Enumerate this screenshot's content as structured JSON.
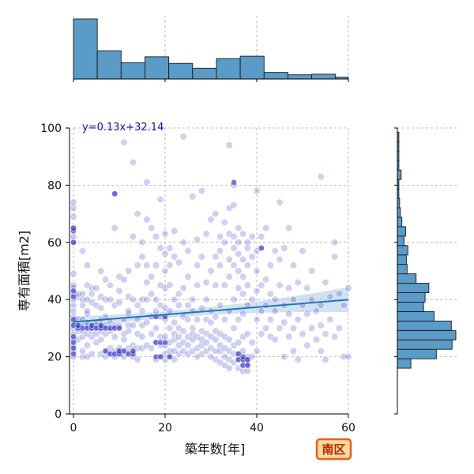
{
  "badge": {
    "label": "南区",
    "fill": "#ffd9a0",
    "border": "#e8611a"
  },
  "colors": {
    "hist_fill": "#5a9bc8",
    "hist_edge": "#1a1a1a",
    "point": "#2a2ac0",
    "fit_line": "#1f77b4",
    "ci_band": "#a9c9e6",
    "grid": "#aaaaaa"
  },
  "chart_data": {
    "type": "scatter",
    "title": "",
    "xlabel": "築年数[年]",
    "ylabel": "専有面積[m2]",
    "xlim": [
      -1,
      60
    ],
    "ylim": [
      0,
      100
    ],
    "xticks": [
      0,
      20,
      40,
      60
    ],
    "yticks": [
      0,
      20,
      40,
      60,
      80,
      100
    ],
    "grid": true,
    "fit": {
      "label": "y=0.13x+32.14",
      "slope": 0.13,
      "intercept": 32.14
    },
    "points": [
      [
        0,
        20
      ],
      [
        0,
        22
      ],
      [
        0,
        24
      ],
      [
        0,
        26
      ],
      [
        0,
        28
      ],
      [
        0,
        30
      ],
      [
        0,
        32
      ],
      [
        0,
        34
      ],
      [
        0,
        36
      ],
      [
        0,
        38
      ],
      [
        0,
        40
      ],
      [
        0,
        42
      ],
      [
        0,
        44
      ],
      [
        0,
        45
      ],
      [
        0,
        49
      ],
      [
        0,
        60
      ],
      [
        0,
        62
      ],
      [
        0,
        65
      ],
      [
        0,
        69
      ],
      [
        0,
        72
      ],
      [
        0,
        74
      ],
      [
        1,
        26
      ],
      [
        1,
        29
      ],
      [
        1,
        31
      ],
      [
        1,
        33
      ],
      [
        1,
        41
      ],
      [
        1,
        42
      ],
      [
        2,
        20
      ],
      [
        2,
        22
      ],
      [
        2,
        27
      ],
      [
        2,
        29
      ],
      [
        2,
        31
      ],
      [
        2,
        33
      ],
      [
        2,
        38
      ],
      [
        2,
        40
      ],
      [
        2,
        42
      ],
      [
        2,
        57
      ],
      [
        3,
        20
      ],
      [
        3,
        24
      ],
      [
        3,
        28
      ],
      [
        3,
        30
      ],
      [
        3,
        31
      ],
      [
        3,
        32
      ],
      [
        3,
        35
      ],
      [
        3,
        36
      ],
      [
        3,
        40
      ],
      [
        3,
        45
      ],
      [
        3,
        52
      ],
      [
        4,
        21
      ],
      [
        4,
        27
      ],
      [
        4,
        29
      ],
      [
        4,
        30
      ],
      [
        4,
        31
      ],
      [
        4,
        39
      ],
      [
        4,
        42
      ],
      [
        4,
        44
      ],
      [
        5,
        25
      ],
      [
        5,
        28
      ],
      [
        5,
        30
      ],
      [
        5,
        31
      ],
      [
        5,
        32
      ],
      [
        5,
        38
      ],
      [
        5,
        44
      ],
      [
        6,
        21
      ],
      [
        6,
        26
      ],
      [
        6,
        29
      ],
      [
        6,
        30
      ],
      [
        6,
        31
      ],
      [
        6,
        33
      ],
      [
        6,
        37
      ],
      [
        6,
        41
      ],
      [
        6,
        50
      ],
      [
        7,
        20
      ],
      [
        7,
        22
      ],
      [
        7,
        28
      ],
      [
        7,
        30
      ],
      [
        7,
        31
      ],
      [
        7,
        34
      ],
      [
        7,
        40
      ],
      [
        7,
        47
      ],
      [
        8,
        21
      ],
      [
        8,
        23
      ],
      [
        8,
        29
      ],
      [
        8,
        30
      ],
      [
        8,
        32
      ],
      [
        8,
        40
      ],
      [
        8,
        45
      ],
      [
        9,
        20
      ],
      [
        9,
        22
      ],
      [
        9,
        27
      ],
      [
        9,
        30
      ],
      [
        9,
        31
      ],
      [
        9,
        38
      ],
      [
        9,
        65
      ],
      [
        9,
        77
      ],
      [
        10,
        21
      ],
      [
        10,
        22
      ],
      [
        10,
        23
      ],
      [
        10,
        30
      ],
      [
        10,
        31
      ],
      [
        10,
        39
      ],
      [
        10,
        43
      ],
      [
        10,
        48
      ],
      [
        11,
        20
      ],
      [
        11,
        22
      ],
      [
        11,
        26
      ],
      [
        11,
        28
      ],
      [
        11,
        33
      ],
      [
        11,
        47
      ],
      [
        11,
        95
      ],
      [
        12,
        21
      ],
      [
        12,
        23
      ],
      [
        12,
        29
      ],
      [
        12,
        31
      ],
      [
        12,
        35
      ],
      [
        12,
        36
      ],
      [
        12,
        41
      ],
      [
        12,
        50
      ],
      [
        13,
        20
      ],
      [
        13,
        22
      ],
      [
        13,
        24
      ],
      [
        13,
        31
      ],
      [
        13,
        40
      ],
      [
        13,
        62
      ],
      [
        13,
        88
      ],
      [
        14,
        19
      ],
      [
        14,
        23
      ],
      [
        14,
        28
      ],
      [
        14,
        33
      ],
      [
        14,
        38
      ],
      [
        14,
        52
      ],
      [
        14,
        70
      ],
      [
        15,
        23
      ],
      [
        15,
        27
      ],
      [
        15,
        31
      ],
      [
        15,
        36
      ],
      [
        15,
        40
      ],
      [
        15,
        55
      ],
      [
        15,
        60
      ],
      [
        16,
        24
      ],
      [
        16,
        32
      ],
      [
        16,
        40
      ],
      [
        16,
        46
      ],
      [
        16,
        52
      ],
      [
        16,
        68
      ],
      [
        16,
        81
      ],
      [
        17,
        23
      ],
      [
        17,
        28
      ],
      [
        17,
        34
      ],
      [
        17,
        42
      ],
      [
        17,
        48
      ],
      [
        17,
        65
      ],
      [
        18,
        19
      ],
      [
        18,
        25
      ],
      [
        18,
        30
      ],
      [
        18,
        36
      ],
      [
        18,
        40
      ],
      [
        18,
        52
      ],
      [
        18,
        62
      ],
      [
        19,
        20
      ],
      [
        19,
        24
      ],
      [
        19,
        27
      ],
      [
        19,
        34
      ],
      [
        19,
        38
      ],
      [
        19,
        45
      ],
      [
        19,
        58
      ],
      [
        19,
        75
      ],
      [
        20,
        19
      ],
      [
        20,
        21
      ],
      [
        20,
        24
      ],
      [
        20,
        27
      ],
      [
        20,
        33
      ],
      [
        20,
        37
      ],
      [
        20,
        44
      ],
      [
        20,
        50
      ],
      [
        20,
        56
      ],
      [
        20,
        63
      ],
      [
        21,
        20
      ],
      [
        21,
        22
      ],
      [
        21,
        25
      ],
      [
        21,
        30
      ],
      [
        21,
        36
      ],
      [
        21,
        45
      ],
      [
        21,
        52
      ],
      [
        21,
        58
      ],
      [
        22,
        19
      ],
      [
        22,
        22
      ],
      [
        22,
        26
      ],
      [
        22,
        28
      ],
      [
        22,
        32
      ],
      [
        22,
        40
      ],
      [
        22,
        55
      ],
      [
        22,
        64
      ],
      [
        23,
        21
      ],
      [
        23,
        24
      ],
      [
        23,
        27
      ],
      [
        23,
        30
      ],
      [
        23,
        38
      ],
      [
        23,
        42
      ],
      [
        23,
        53
      ],
      [
        24,
        22
      ],
      [
        24,
        25
      ],
      [
        24,
        29
      ],
      [
        24,
        34
      ],
      [
        24,
        44
      ],
      [
        24,
        60
      ],
      [
        24,
        97
      ],
      [
        25,
        21
      ],
      [
        25,
        24
      ],
      [
        25,
        27
      ],
      [
        25,
        33
      ],
      [
        25,
        38
      ],
      [
        25,
        48
      ],
      [
        25,
        57
      ],
      [
        26,
        22
      ],
      [
        26,
        26
      ],
      [
        26,
        28
      ],
      [
        26,
        30
      ],
      [
        26,
        36
      ],
      [
        26,
        40
      ],
      [
        26,
        76
      ],
      [
        27,
        20
      ],
      [
        27,
        23
      ],
      [
        27,
        27
      ],
      [
        27,
        33
      ],
      [
        27,
        45
      ],
      [
        27,
        52
      ],
      [
        27,
        61
      ],
      [
        28,
        21
      ],
      [
        28,
        24
      ],
      [
        28,
        26
      ],
      [
        28,
        29
      ],
      [
        28,
        37
      ],
      [
        28,
        55
      ],
      [
        28,
        78
      ],
      [
        29,
        22
      ],
      [
        29,
        25
      ],
      [
        29,
        28
      ],
      [
        29,
        33
      ],
      [
        29,
        40
      ],
      [
        29,
        46
      ],
      [
        29,
        63
      ],
      [
        30,
        20
      ],
      [
        30,
        23
      ],
      [
        30,
        27
      ],
      [
        30,
        32
      ],
      [
        30,
        36
      ],
      [
        30,
        50
      ],
      [
        30,
        68
      ],
      [
        31,
        19
      ],
      [
        31,
        22
      ],
      [
        31,
        26
      ],
      [
        31,
        29
      ],
      [
        31,
        34
      ],
      [
        31,
        45
      ],
      [
        31,
        55
      ],
      [
        31,
        70
      ],
      [
        32,
        18
      ],
      [
        32,
        22
      ],
      [
        32,
        24
      ],
      [
        32,
        28
      ],
      [
        32,
        38
      ],
      [
        32,
        52
      ],
      [
        32,
        57
      ],
      [
        32,
        62
      ],
      [
        33,
        17
      ],
      [
        33,
        20
      ],
      [
        33,
        23
      ],
      [
        33,
        27
      ],
      [
        33,
        33
      ],
      [
        33,
        45
      ],
      [
        33,
        60
      ],
      [
        33,
        67
      ],
      [
        34,
        16
      ],
      [
        34,
        19
      ],
      [
        34,
        22
      ],
      [
        34,
        26
      ],
      [
        34,
        36
      ],
      [
        34,
        48
      ],
      [
        34,
        54
      ],
      [
        34,
        63
      ],
      [
        34,
        72
      ],
      [
        34,
        94
      ],
      [
        35,
        18
      ],
      [
        35,
        21
      ],
      [
        35,
        24
      ],
      [
        35,
        30
      ],
      [
        35,
        40
      ],
      [
        35,
        52
      ],
      [
        35,
        58
      ],
      [
        35,
        62
      ],
      [
        35,
        73
      ],
      [
        35,
        80
      ],
      [
        36,
        16
      ],
      [
        36,
        19
      ],
      [
        36,
        21
      ],
      [
        36,
        25
      ],
      [
        36,
        33
      ],
      [
        36,
        44
      ],
      [
        36,
        50
      ],
      [
        36,
        56
      ],
      [
        36,
        60
      ],
      [
        36,
        65
      ],
      [
        37,
        15
      ],
      [
        37,
        17
      ],
      [
        37,
        19
      ],
      [
        37,
        22
      ],
      [
        37,
        27
      ],
      [
        37,
        35
      ],
      [
        37,
        42
      ],
      [
        37,
        48
      ],
      [
        37,
        54
      ],
      [
        37,
        63
      ],
      [
        38,
        15
      ],
      [
        38,
        17
      ],
      [
        38,
        18
      ],
      [
        38,
        19
      ],
      [
        38,
        20
      ],
      [
        38,
        28
      ],
      [
        38,
        38
      ],
      [
        38,
        45
      ],
      [
        38,
        52
      ],
      [
        38,
        58
      ],
      [
        38,
        60
      ],
      [
        39,
        20
      ],
      [
        39,
        25
      ],
      [
        39,
        40
      ],
      [
        39,
        55
      ],
      [
        39,
        62
      ],
      [
        40,
        22
      ],
      [
        40,
        33
      ],
      [
        40,
        43
      ],
      [
        40,
        50
      ],
      [
        40,
        57
      ],
      [
        40,
        78
      ],
      [
        41,
        28
      ],
      [
        41,
        36
      ],
      [
        41,
        45
      ],
      [
        41,
        58
      ],
      [
        41,
        62
      ],
      [
        42,
        30
      ],
      [
        42,
        38
      ],
      [
        42,
        47
      ],
      [
        42,
        65
      ],
      [
        43,
        27
      ],
      [
        43,
        33
      ],
      [
        43,
        42
      ],
      [
        43,
        52
      ],
      [
        44,
        26
      ],
      [
        44,
        36
      ],
      [
        44,
        40
      ],
      [
        44,
        57
      ],
      [
        45,
        30
      ],
      [
        45,
        45
      ],
      [
        45,
        54
      ],
      [
        45,
        74
      ],
      [
        46,
        20
      ],
      [
        46,
        32
      ],
      [
        46,
        38
      ],
      [
        46,
        58
      ],
      [
        47,
        27
      ],
      [
        47,
        35
      ],
      [
        47,
        44
      ],
      [
        47,
        65
      ],
      [
        48,
        22
      ],
      [
        48,
        30
      ],
      [
        48,
        40
      ],
      [
        48,
        52
      ],
      [
        49,
        19
      ],
      [
        49,
        33
      ],
      [
        49,
        46
      ],
      [
        50,
        28
      ],
      [
        50,
        38
      ],
      [
        50,
        57
      ],
      [
        51,
        24
      ],
      [
        51,
        35
      ],
      [
        51,
        44
      ],
      [
        52,
        30
      ],
      [
        52,
        40
      ],
      [
        52,
        50
      ],
      [
        53,
        26
      ],
      [
        53,
        36
      ],
      [
        54,
        22
      ],
      [
        54,
        31
      ],
      [
        54,
        38
      ],
      [
        54,
        83
      ],
      [
        55,
        19
      ],
      [
        55,
        28
      ],
      [
        55,
        46
      ],
      [
        56,
        33
      ],
      [
        56,
        41
      ],
      [
        57,
        27
      ],
      [
        57,
        55
      ],
      [
        57,
        60
      ],
      [
        58,
        30
      ],
      [
        58,
        42
      ],
      [
        59,
        20
      ],
      [
        59,
        38
      ],
      [
        60,
        20
      ],
      [
        60,
        44
      ]
    ],
    "dark_points": [
      [
        0,
        21
      ],
      [
        0,
        23
      ],
      [
        0,
        25
      ],
      [
        0,
        27
      ],
      [
        0,
        31
      ],
      [
        0,
        33
      ],
      [
        0,
        41
      ],
      [
        0,
        43
      ],
      [
        0,
        60
      ],
      [
        0,
        64
      ],
      [
        0,
        65
      ],
      [
        1,
        30
      ],
      [
        1,
        31
      ],
      [
        2,
        30
      ],
      [
        3,
        30
      ],
      [
        4,
        30
      ],
      [
        4,
        31
      ],
      [
        5,
        30
      ],
      [
        6,
        30
      ],
      [
        6,
        31
      ],
      [
        7,
        22
      ],
      [
        7,
        30
      ],
      [
        8,
        21
      ],
      [
        8,
        30
      ],
      [
        9,
        21
      ],
      [
        9,
        30
      ],
      [
        10,
        21
      ],
      [
        10,
        22
      ],
      [
        10,
        30
      ],
      [
        11,
        22
      ],
      [
        12,
        21
      ],
      [
        13,
        21
      ],
      [
        13,
        22
      ],
      [
        18,
        20
      ],
      [
        18,
        25
      ],
      [
        18,
        34
      ],
      [
        19,
        20
      ],
      [
        19,
        25
      ],
      [
        20,
        25
      ],
      [
        21,
        20
      ],
      [
        36,
        19
      ],
      [
        36,
        21
      ],
      [
        37,
        17
      ],
      [
        37,
        19
      ],
      [
        37,
        20
      ],
      [
        38,
        17
      ],
      [
        38,
        19
      ],
      [
        41,
        58
      ],
      [
        9,
        77
      ],
      [
        35,
        81
      ],
      [
        20,
        34
      ]
    ],
    "hist_x": {
      "bin_edges": [
        0,
        5.2,
        10.4,
        15.6,
        20.8,
        26.0,
        31.2,
        36.4,
        41.6,
        46.8,
        52.0,
        57.2,
        60.0
      ],
      "counts": [
        100,
        47,
        27,
        37,
        26,
        18,
        34,
        38,
        11,
        7,
        8,
        3
      ]
    },
    "hist_y": {
      "bin_edges": [
        16,
        19.3,
        22.6,
        25.9,
        29.2,
        32.5,
        35.8,
        39.1,
        42.4,
        45.7,
        49,
        52.3,
        55.6,
        58.9,
        62.2,
        65.5,
        68.8,
        72.1,
        75.4,
        78.7,
        82,
        85.3,
        88.6,
        91.9,
        95.2,
        98.5
      ],
      "counts": [
        18,
        52,
        73,
        78,
        72,
        49,
        35,
        37,
        42,
        25,
        13,
        12,
        14,
        9,
        11,
        6,
        4,
        3,
        2,
        2,
        5,
        2,
        2,
        2,
        2
      ]
    }
  }
}
